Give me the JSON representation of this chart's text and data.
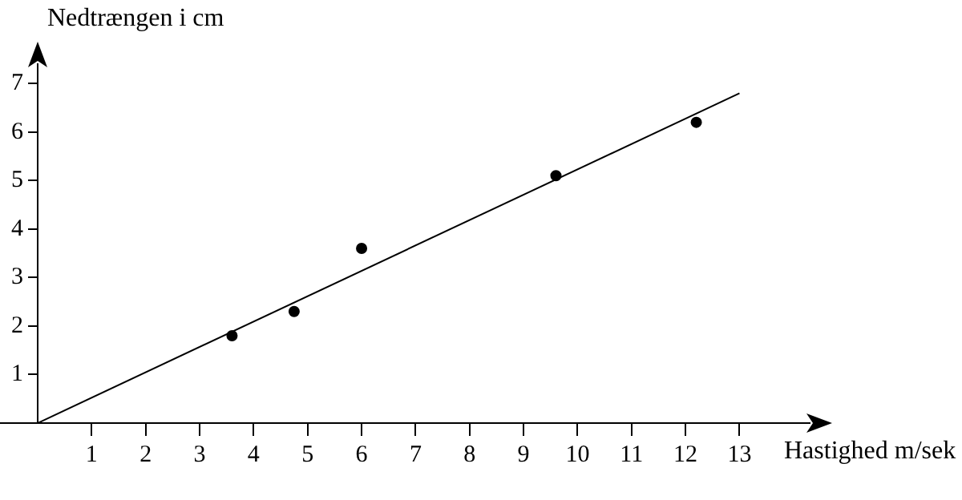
{
  "chart_data": {
    "type": "scatter",
    "xlabel": "Hastighed m/sek",
    "ylabel": "Nedtrængen i cm",
    "xlim": [
      0,
      14.3
    ],
    "ylim": [
      0,
      7.4
    ],
    "xticks": [
      1,
      2,
      3,
      4,
      5,
      6,
      7,
      8,
      9,
      10,
      11,
      12,
      13
    ],
    "yticks": [
      1,
      2,
      3,
      4,
      5,
      6,
      7
    ],
    "grid": false,
    "legend": false,
    "marker": "circle",
    "series": [
      {
        "color": "#000000",
        "x": [
          3.6,
          4.75,
          6.0,
          9.6,
          12.2
        ],
        "values": [
          1.8,
          2.3,
          3.6,
          5.1,
          6.2
        ]
      },
      {
        "type": "line",
        "color": "#000000",
        "marker": "none",
        "x": [
          0,
          13
        ],
        "values": [
          0,
          6.8
        ]
      }
    ]
  }
}
